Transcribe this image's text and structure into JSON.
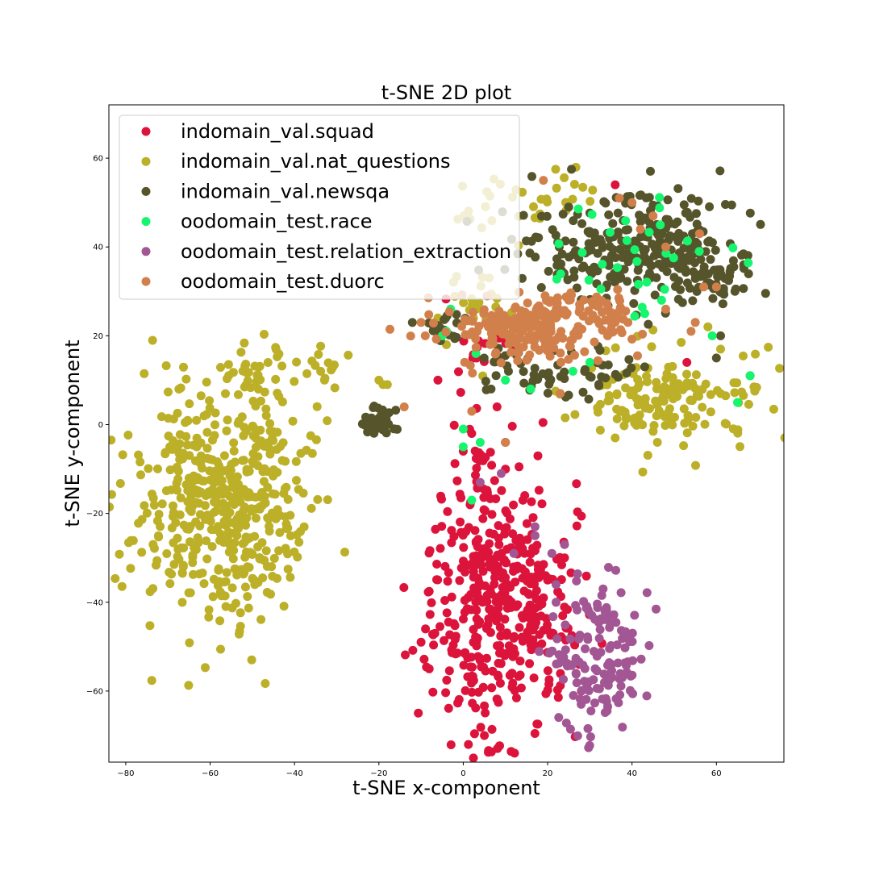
{
  "chart_data": {
    "type": "scatter",
    "title": "t-SNE 2D plot",
    "xlabel": "t-SNE x-component",
    "ylabel": "t-SNE y-component",
    "xlim": [
      -84,
      76
    ],
    "ylim": [
      -76,
      72
    ],
    "xticks": [
      -80,
      -60,
      -40,
      -20,
      0,
      20,
      40,
      60
    ],
    "yticks": [
      -60,
      -40,
      -20,
      0,
      20,
      40,
      60
    ],
    "xtick_labels": [
      "−80",
      "−60",
      "−40",
      "−20",
      "0",
      "20",
      "40",
      "60"
    ],
    "ytick_labels": [
      "−60",
      "−40",
      "−20",
      "0",
      "20",
      "40",
      "60"
    ],
    "grid": false,
    "legend_position": "upper-left",
    "series": [
      {
        "name": "indomain_val.squad",
        "color": "#dc143c",
        "clusters": [
          {
            "cx": 8,
            "cy": -42,
            "sx": 8.5,
            "sy": 14,
            "n": 420
          },
          {
            "cx": 4,
            "cy": -12,
            "sx": 2.5,
            "sy": 6,
            "n": 30
          },
          {
            "cx": 5,
            "cy": 18,
            "sx": 6,
            "sy": 4,
            "n": 20
          }
        ],
        "points": [
          {
            "x": 36,
            "y": 54
          },
          {
            "x": 53,
            "y": 14
          },
          {
            "x": -6,
            "y": 10
          },
          {
            "x": 8,
            "y": 4
          },
          {
            "x": 0,
            "y": -6
          },
          {
            "x": 2,
            "y": -2
          },
          {
            "x": 10,
            "y": -4
          },
          {
            "x": 24,
            "y": -30
          },
          {
            "x": -10,
            "y": -49
          },
          {
            "x": 5,
            "y": -70
          },
          {
            "x": 28,
            "y": -60
          }
        ]
      },
      {
        "name": "indomain_val.nat_questions",
        "color": "#bcb028",
        "clusters": [
          {
            "cx": -57,
            "cy": -18,
            "sx": 10,
            "sy": 13,
            "n": 500
          },
          {
            "cx": -50,
            "cy": 10,
            "sx": 5,
            "sy": 4,
            "n": 30
          },
          {
            "cx": -33,
            "cy": 11,
            "sx": 2,
            "sy": 3,
            "n": 15
          },
          {
            "cx": 48,
            "cy": 6,
            "sx": 12,
            "sy": 5,
            "n": 160
          },
          {
            "cx": 10,
            "cy": 49,
            "sx": 6,
            "sy": 4,
            "n": 25
          },
          {
            "cx": 26,
            "cy": 53,
            "sx": 3,
            "sy": 2,
            "n": 10
          },
          {
            "cx": 2,
            "cy": 28,
            "sx": 4,
            "sy": 4,
            "n": 20
          }
        ],
        "points": [
          {
            "x": -19,
            "y": 9
          },
          {
            "x": -20,
            "y": 10
          },
          {
            "x": -18,
            "y": 9
          },
          {
            "x": 58,
            "y": 22
          },
          {
            "x": 61,
            "y": 17
          },
          {
            "x": 46,
            "y": -4
          },
          {
            "x": 36,
            "y": -3
          },
          {
            "x": -6,
            "y": 24
          },
          {
            "x": -4,
            "y": 18
          }
        ]
      },
      {
        "name": "indomain_val.newsqa",
        "color": "#56542b",
        "clusters": [
          {
            "cx": 40,
            "cy": 40,
            "sx": 13,
            "sy": 6,
            "n": 280
          },
          {
            "cx": 58,
            "cy": 33,
            "sx": 6,
            "sy": 4,
            "n": 60
          },
          {
            "cx": 22,
            "cy": 12,
            "sx": 9,
            "sy": 3,
            "n": 60
          },
          {
            "cx": -20,
            "cy": 1,
            "sx": 1.8,
            "sy": 2,
            "n": 45
          },
          {
            "cx": -4,
            "cy": 20,
            "sx": 3,
            "sy": 3,
            "n": 20
          }
        ],
        "points": [
          {
            "x": 25,
            "y": 49
          },
          {
            "x": 61,
            "y": 20
          },
          {
            "x": 60,
            "y": 15
          },
          {
            "x": 43,
            "y": 13
          },
          {
            "x": 68,
            "y": 11
          },
          {
            "x": 9,
            "y": 15
          }
        ]
      },
      {
        "name": "oodomain_test.race",
        "color": "#15f56e",
        "clusters": [
          {
            "cx": 40,
            "cy": 38,
            "sx": 12,
            "sy": 6,
            "n": 30
          }
        ],
        "points": [
          {
            "x": -3,
            "y": 26
          },
          {
            "x": -5,
            "y": 20
          },
          {
            "x": -4,
            "y": 21
          },
          {
            "x": 3,
            "y": 16
          },
          {
            "x": 10,
            "y": 10
          },
          {
            "x": 16,
            "y": 8
          },
          {
            "x": 0,
            "y": -1
          },
          {
            "x": 0,
            "y": -5
          },
          {
            "x": 4,
            "y": -4
          },
          {
            "x": 2,
            "y": -17
          },
          {
            "x": 65,
            "y": 5
          },
          {
            "x": 68,
            "y": 11
          },
          {
            "x": 47,
            "y": 28
          },
          {
            "x": 43,
            "y": 25
          },
          {
            "x": 30,
            "y": 14
          },
          {
            "x": 26,
            "y": 12
          },
          {
            "x": 59,
            "y": 20
          }
        ]
      },
      {
        "name": "oodomain_test.relation_extraction",
        "color": "#a25693",
        "clusters": [
          {
            "cx": 33,
            "cy": -53,
            "sx": 5.5,
            "sy": 8,
            "n": 140
          }
        ],
        "points": [
          {
            "x": 17,
            "y": -25
          },
          {
            "x": 17,
            "y": -23
          },
          {
            "x": 21,
            "y": -29
          },
          {
            "x": 22,
            "y": -36
          },
          {
            "x": 12,
            "y": -29
          },
          {
            "x": 9,
            "y": -11
          },
          {
            "x": 4,
            "y": -13
          },
          {
            "x": 24,
            "y": -27
          },
          {
            "x": 22,
            "y": -40
          }
        ]
      },
      {
        "name": "oodomain_test.duorc",
        "color": "#d1804b",
        "clusters": [
          {
            "cx": 15,
            "cy": 22,
            "sx": 10,
            "sy": 4,
            "n": 200
          },
          {
            "cx": 34,
            "cy": 25,
            "sx": 4,
            "sy": 3,
            "n": 35
          }
        ],
        "points": [
          {
            "x": 19,
            "y": 55
          },
          {
            "x": 37,
            "y": 51
          },
          {
            "x": 40,
            "y": 50
          },
          {
            "x": 45,
            "y": 47
          },
          {
            "x": 42,
            "y": 44
          },
          {
            "x": 48,
            "y": 40
          },
          {
            "x": 56,
            "y": 43
          },
          {
            "x": 57,
            "y": 31
          },
          {
            "x": 55,
            "y": 23
          },
          {
            "x": 54,
            "y": 21
          },
          {
            "x": 60,
            "y": 31
          },
          {
            "x": -9,
            "y": 20
          },
          {
            "x": -10,
            "y": 23
          },
          {
            "x": -14,
            "y": 4
          },
          {
            "x": 2,
            "y": 3
          },
          {
            "x": 10,
            "y": -4
          },
          {
            "x": 23,
            "y": 7
          },
          {
            "x": 48,
            "y": 26
          }
        ]
      }
    ]
  }
}
